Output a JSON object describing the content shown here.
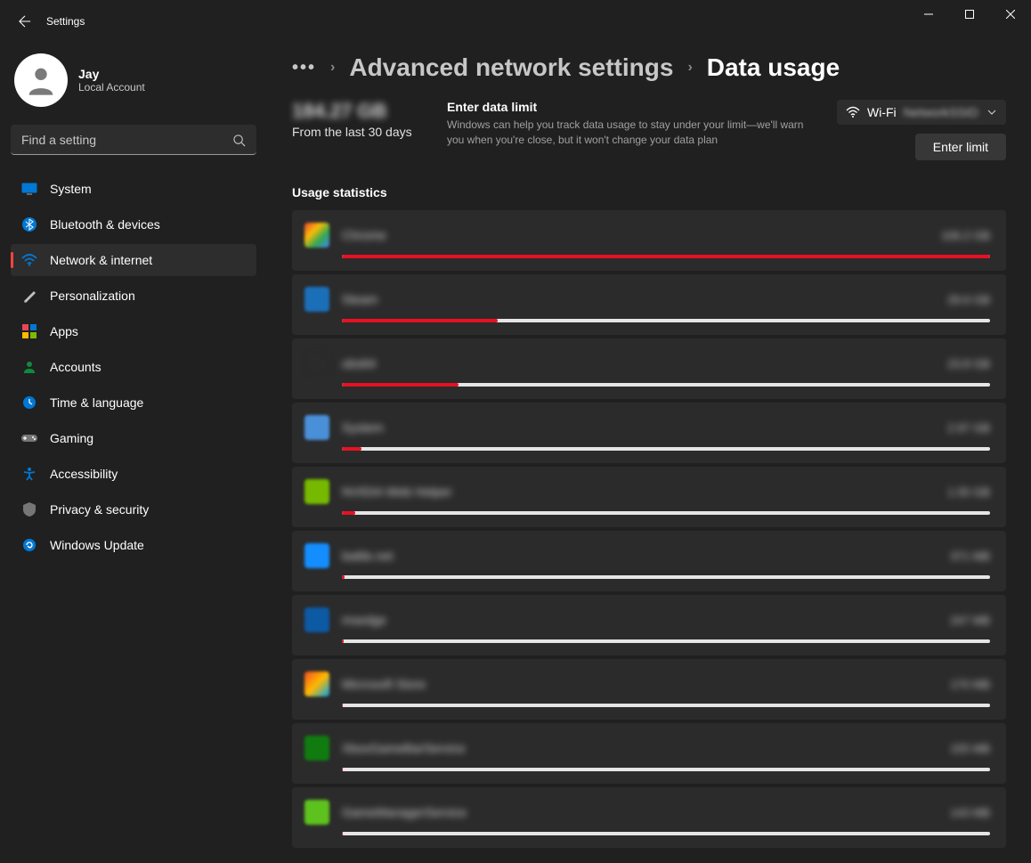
{
  "window": {
    "title": "Settings",
    "colors": {
      "bg": "#202020",
      "card": "#2b2b2b",
      "accent": "#ff4343",
      "text": "#ffffff",
      "text_muted": "#a0a0a0"
    }
  },
  "profile": {
    "name": "Jay",
    "subtitle": "Local Account"
  },
  "search": {
    "placeholder": "Find a setting"
  },
  "sidebar": {
    "items": [
      {
        "label": "System",
        "icon": "system-icon",
        "color1": "#0078d4",
        "color2": "#2b2b2b"
      },
      {
        "label": "Bluetooth & devices",
        "icon": "bluetooth-icon",
        "color1": "#0078d4",
        "color2": "#0078d4"
      },
      {
        "label": "Network & internet",
        "icon": "wifi-icon",
        "color1": "#0078d4",
        "color2": "#0078d4",
        "active": true
      },
      {
        "label": "Personalization",
        "icon": "brush-icon",
        "color1": "#8b5a3c",
        "color2": "#c0c0c0"
      },
      {
        "label": "Apps",
        "icon": "apps-icon",
        "color1": "#e74856",
        "color2": "#0078d4"
      },
      {
        "label": "Accounts",
        "icon": "person-icon",
        "color1": "#10893e",
        "color2": "#10893e"
      },
      {
        "label": "Time & language",
        "icon": "clock-icon",
        "color1": "#0078d4",
        "color2": "#0078d4"
      },
      {
        "label": "Gaming",
        "icon": "gamepad-icon",
        "color1": "#767676",
        "color2": "#767676"
      },
      {
        "label": "Accessibility",
        "icon": "accessibility-icon",
        "color1": "#0078d4",
        "color2": "#0078d4"
      },
      {
        "label": "Privacy & security",
        "icon": "shield-icon",
        "color1": "#767676",
        "color2": "#767676"
      },
      {
        "label": "Windows Update",
        "icon": "update-icon",
        "color1": "#0078d4",
        "color2": "#0078d4"
      }
    ]
  },
  "breadcrumb": {
    "link": "Advanced network settings",
    "current": "Data usage"
  },
  "summary": {
    "total": "184.27 GB",
    "period": "From the last 30 days",
    "limit_title": "Enter data limit",
    "limit_desc": "Windows can help you track data usage to stay under your limit—we'll warn you when you're close, but it won't change your data plan",
    "wifi_label": "Wi-Fi",
    "wifi_name": "NetworkSSID",
    "enter_limit_btn": "Enter limit"
  },
  "usage": {
    "section_title": "Usage statistics",
    "bar_fill_color": "#e81123",
    "bar_track_color": "#e5e5e5",
    "items": [
      {
        "name": "Chrome",
        "amount": "106.2 GB",
        "percent": 100,
        "icon_bg": "linear-gradient(135deg,#ea4335 0%,#fbbc05 35%,#34a853 65%,#4285f4 100%)"
      },
      {
        "name": "Steam",
        "amount": "29.6 GB",
        "percent": 24,
        "icon_bg": "#1b6fb8"
      },
      {
        "name": "obs64",
        "amount": "23.8 GB",
        "percent": 18,
        "icon_bg": "#2b2b2b"
      },
      {
        "name": "System",
        "amount": "2.97 GB",
        "percent": 3,
        "icon_bg": "#4a90d9"
      },
      {
        "name": "NVIDIA Web Helper",
        "amount": "1.55 GB",
        "percent": 2,
        "icon_bg": "#76b900"
      },
      {
        "name": "battle.net",
        "amount": "371 MB",
        "percent": 0.4,
        "icon_bg": "#148eff"
      },
      {
        "name": "msedge",
        "amount": "247 MB",
        "percent": 0.3,
        "icon_bg": "#0c59a4"
      },
      {
        "name": "Microsoft Store",
        "amount": "170 MB",
        "percent": 0.2,
        "icon_bg": "linear-gradient(135deg,#f25022 0%,#ffb900 50%,#00a4ef 100%)"
      },
      {
        "name": "XboxGameBarService",
        "amount": "155 MB",
        "percent": 0.15,
        "icon_bg": "#107c10"
      },
      {
        "name": "GameManagerService",
        "amount": "143 MB",
        "percent": 0.14,
        "icon_bg": "#5dc21e"
      }
    ]
  }
}
